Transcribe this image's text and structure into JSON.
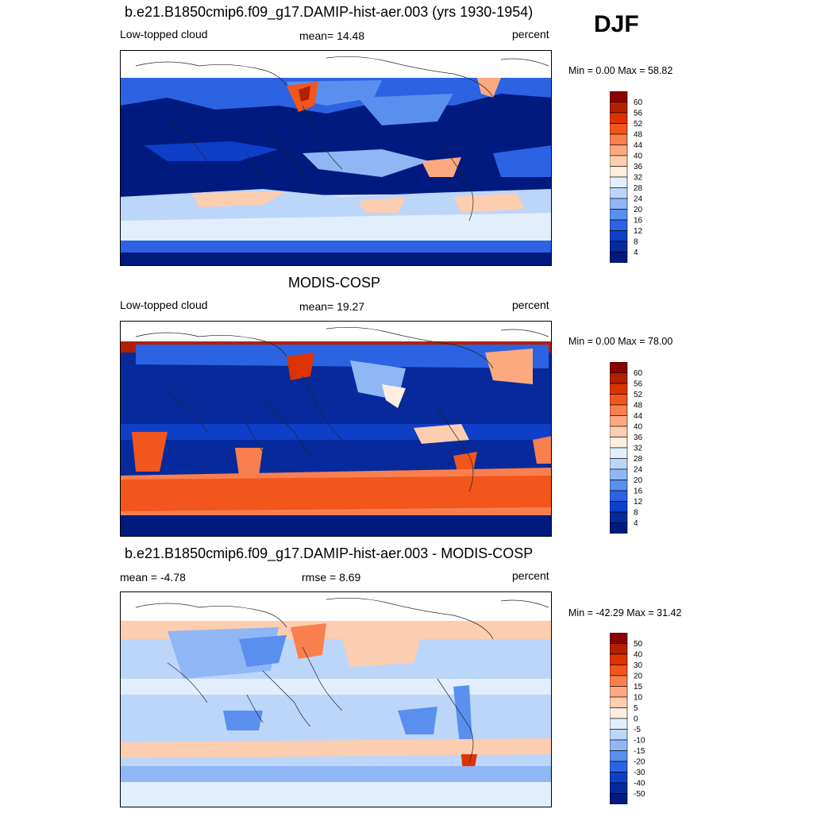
{
  "season": "DJF",
  "chart_data": [
    {
      "type": "heatmap",
      "title": "b.e21.B1850cmip6.f09_g17.DAMIP-hist-aer.003 (yrs 1930-1954)",
      "left_label": "Low-topped cloud",
      "center_label": "mean=  14.48",
      "units": "percent",
      "minmax": "Min =    0.00 Max =  58.82",
      "colorbar": {
        "levels": [
          "60",
          "56",
          "52",
          "48",
          "44",
          "40",
          "36",
          "32",
          "28",
          "24",
          "20",
          "16",
          "12",
          "8",
          "4"
        ],
        "colors": [
          "#8b0000",
          "#b22000",
          "#dd3300",
          "#f2561d",
          "#fa7f4f",
          "#fca980",
          "#fdcdb0",
          "#fdeee0",
          "#e2eefc",
          "#bcd6fa",
          "#8fb7f5",
          "#5a8ff0",
          "#2b63e3",
          "#0f3fc9",
          "#062a9b",
          "#001a80"
        ]
      },
      "grid": "none"
    },
    {
      "type": "heatmap",
      "title": "MODIS-COSP",
      "left_label": "Low-topped cloud",
      "center_label": "mean=  19.27",
      "units": "percent",
      "minmax": "Min =    0.00 Max =  78.00",
      "colorbar": {
        "levels": [
          "60",
          "56",
          "52",
          "48",
          "44",
          "40",
          "36",
          "32",
          "28",
          "24",
          "20",
          "16",
          "12",
          "8",
          "4"
        ],
        "colors": [
          "#8b0000",
          "#b22000",
          "#dd3300",
          "#f2561d",
          "#fa7f4f",
          "#fca980",
          "#fdcdb0",
          "#fdeee0",
          "#e2eefc",
          "#bcd6fa",
          "#8fb7f5",
          "#5a8ff0",
          "#2b63e3",
          "#0f3fc9",
          "#062a9b",
          "#001a80"
        ]
      },
      "grid": "none"
    },
    {
      "type": "heatmap",
      "title": "b.e21.B1850cmip6.f09_g17.DAMIP-hist-aer.003 - MODIS-COSP",
      "left_label": "mean =  -4.78",
      "center_label": "rmse =    8.69",
      "units": "percent",
      "minmax": "Min = -42.29 Max =  31.42",
      "colorbar": {
        "levels": [
          "50",
          "40",
          "30",
          "20",
          "15",
          "10",
          "5",
          "0",
          "-5",
          "-10",
          "-15",
          "-20",
          "-30",
          "-40",
          "-50"
        ],
        "colors": [
          "#8b0000",
          "#b22000",
          "#dd3300",
          "#f2561d",
          "#fa7f4f",
          "#fca980",
          "#fdcdb0",
          "#fdeee0",
          "#e2eefc",
          "#bcd6fa",
          "#8fb7f5",
          "#5a8ff0",
          "#2b63e3",
          "#0f3fc9",
          "#062a9b",
          "#001a80"
        ]
      },
      "grid": "none"
    }
  ]
}
